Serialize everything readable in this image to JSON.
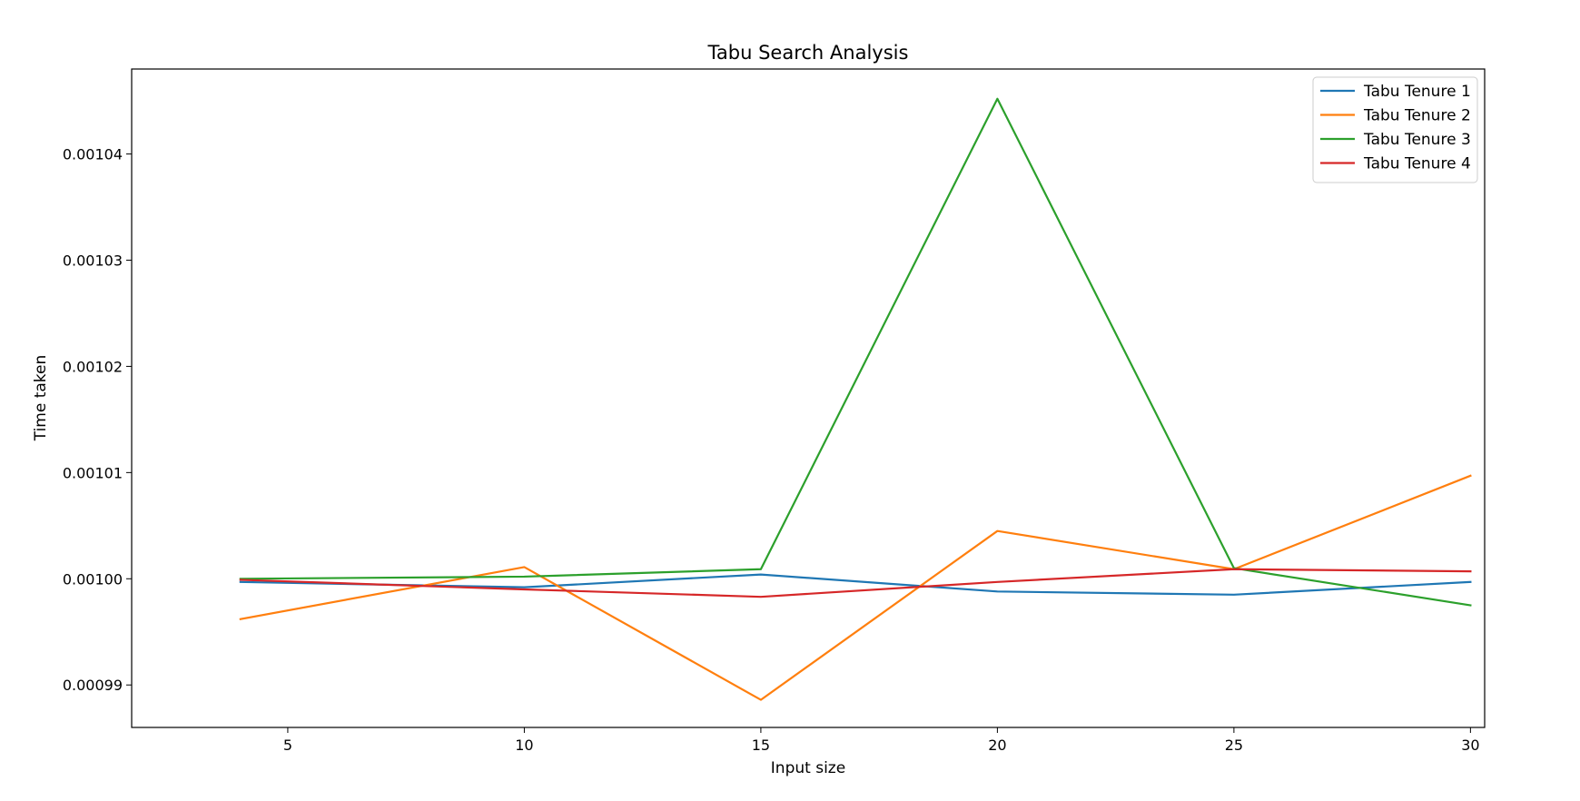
{
  "chart_data": {
    "type": "line",
    "title": "Tabu Search Analysis",
    "xlabel": "Input size",
    "ylabel": "Time taken",
    "x": [
      4,
      10,
      15,
      20,
      25,
      30
    ],
    "xlim": [
      1.7,
      30.3
    ],
    "ylim": [
      0.000986,
      0.001048
    ],
    "xticks": [
      5,
      10,
      15,
      20,
      25,
      30
    ],
    "xtick_labels": [
      "5",
      "10",
      "15",
      "20",
      "25",
      "30"
    ],
    "yticks": [
      0.00099,
      0.001,
      0.00101,
      0.00102,
      0.00103,
      0.00104
    ],
    "ytick_labels": [
      "0.00099",
      "0.00100",
      "0.00101",
      "0.00102",
      "0.00103",
      "0.00104"
    ],
    "grid": false,
    "legend_position": "top-right",
    "series": [
      {
        "name": "Tabu Tenure 1",
        "color": "#1f77b4",
        "values": [
          0.0009997,
          0.0009992,
          0.0010004,
          0.0009988,
          0.0009985,
          0.0009997
        ]
      },
      {
        "name": "Tabu Tenure 2",
        "color": "#ff7f0e",
        "values": [
          0.0009962,
          0.0010011,
          0.0009886,
          0.0010045,
          0.0010009,
          0.0010097
        ]
      },
      {
        "name": "Tabu Tenure 3",
        "color": "#2ca02c",
        "values": [
          0.001,
          0.0010002,
          0.0010009,
          0.0010452,
          0.001001,
          0.0009975
        ]
      },
      {
        "name": "Tabu Tenure 4",
        "color": "#d62728",
        "values": [
          0.0009999,
          0.000999,
          0.0009983,
          0.0009997,
          0.0010009,
          0.0010007
        ]
      }
    ]
  }
}
